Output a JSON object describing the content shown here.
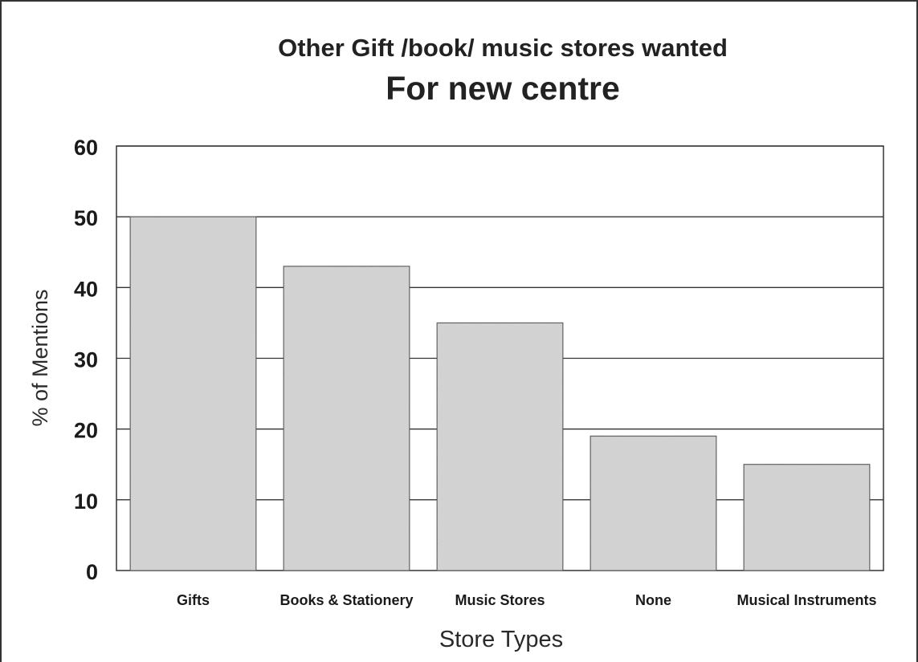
{
  "chart_data": {
    "type": "bar",
    "title": "Other Gift /book/ music stores wanted",
    "subtitle": "For new centre",
    "xlabel": "Store Types",
    "ylabel": "% of Mentions",
    "categories": [
      "Gifts",
      "Books & Stationery",
      "Music Stores",
      "None",
      "Musical Instruments"
    ],
    "values": [
      50,
      43,
      35,
      19,
      15
    ],
    "ylim": [
      0,
      60
    ],
    "yticks": [
      0,
      10,
      20,
      30,
      40,
      50,
      60
    ],
    "grid": true,
    "legend": "none",
    "colors": {
      "bar": "#cfcfcf",
      "bar_edge": "#555555",
      "grid": "#333333",
      "frame": "#333333"
    }
  }
}
